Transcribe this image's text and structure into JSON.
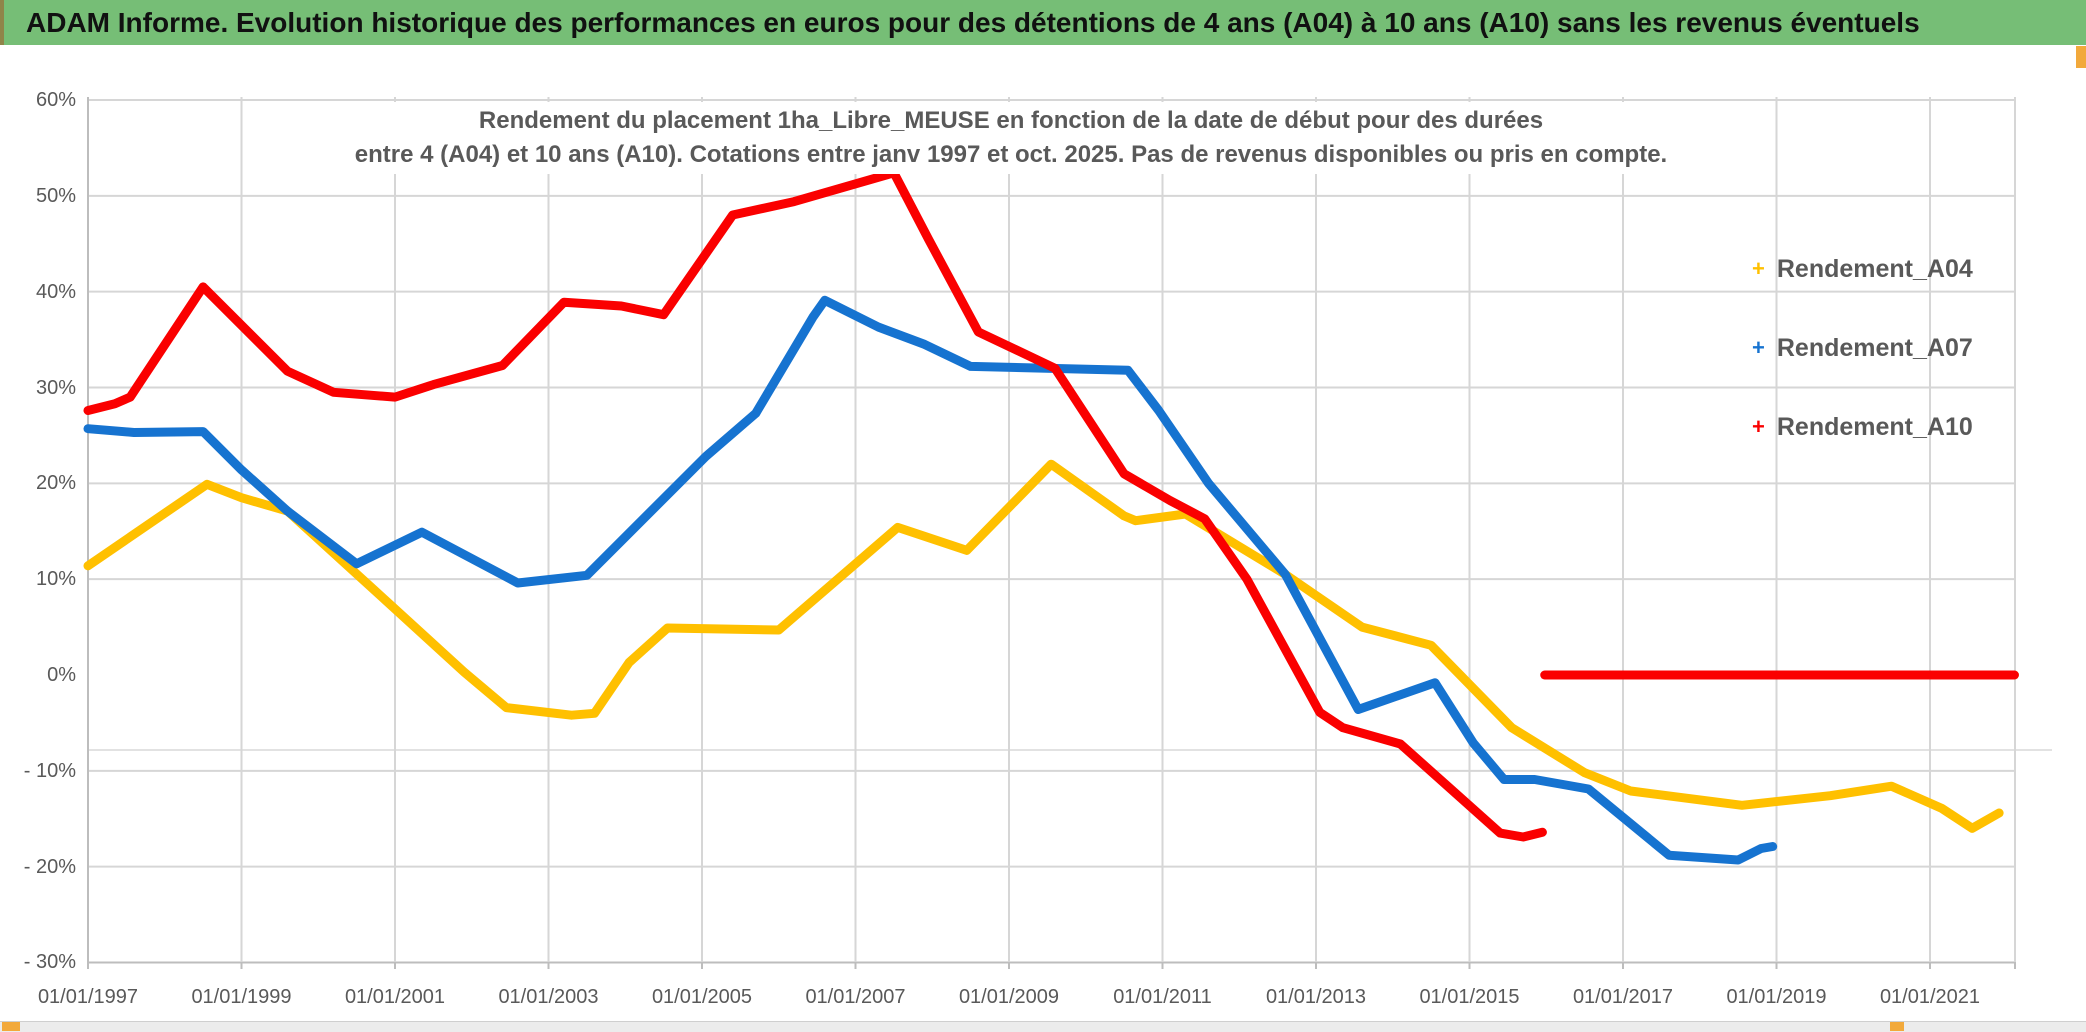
{
  "header": {
    "title": "ADAM Informe. Evolution historique des performances en euros pour des détentions de 4 ans (A04) à 10 ans (A10) sans les revenus éventuels"
  },
  "theme": {
    "header_bg": "#76BE76",
    "text_gray": "#595959",
    "gridline": "#D6D6D6",
    "axis_line": "#BDBDBD",
    "row_line": "#E2E2E2",
    "handle_orange": "#F2A93B",
    "series_a04": "#FFC000",
    "series_a07": "#1673D0",
    "series_a10": "#FA0000"
  },
  "chart_data": {
    "type": "line",
    "title_line1": "Rendement du placement 1ha_Libre_MEUSE en fonction de la date de début pour des durées",
    "title_line2": "entre 4 (A04) et 10 ans (A10). Cotations entre janv 1997 et oct. 2025. Pas de revenus disponibles ou pris en compte.",
    "x_range": [
      1997,
      2022.15
    ],
    "y_range": [
      -30,
      60
    ],
    "grid": "on",
    "legend_position": "right",
    "y_ticks": [
      {
        "label": "60%",
        "value": 60
      },
      {
        "label": "50%",
        "value": 50
      },
      {
        "label": "40%",
        "value": 40
      },
      {
        "label": "30%",
        "value": 30
      },
      {
        "label": "20%",
        "value": 20
      },
      {
        "label": "10%",
        "value": 10
      },
      {
        "label": "0%",
        "value": 0
      },
      {
        "label": "- 10%",
        "value": -10
      },
      {
        "label": "- 20%",
        "value": -20
      },
      {
        "label": "- 30%",
        "value": -30
      }
    ],
    "x_ticks": [
      {
        "label": "01/01/1997",
        "year": 1997
      },
      {
        "label": "01/01/1999",
        "year": 1999
      },
      {
        "label": "01/01/2001",
        "year": 2001
      },
      {
        "label": "01/01/2003",
        "year": 2003
      },
      {
        "label": "01/01/2005",
        "year": 2005
      },
      {
        "label": "01/01/2007",
        "year": 2007
      },
      {
        "label": "01/01/2009",
        "year": 2009
      },
      {
        "label": "01/01/2011",
        "year": 2011
      },
      {
        "label": "01/01/2013",
        "year": 2013
      },
      {
        "label": "01/01/2015",
        "year": 2015
      },
      {
        "label": "01/01/2017",
        "year": 2017
      },
      {
        "label": "01/01/2019",
        "year": 2019
      },
      {
        "label": "01/01/2021",
        "year": 2021
      }
    ],
    "legend": [
      {
        "label": "Rendement_A04",
        "marker": "+",
        "color": "#FFC000"
      },
      {
        "label": "Rendement_A07",
        "marker": "+",
        "color": "#1673D0"
      },
      {
        "label": "Rendement_A10",
        "marker": "+",
        "color": "#FA0000"
      }
    ],
    "series": [
      {
        "name": "Rendement_A04",
        "color": "#FFC000",
        "points": [
          [
            1997.0,
            11.4
          ],
          [
            1998.55,
            19.9
          ],
          [
            1999.0,
            18.5
          ],
          [
            1999.6,
            17.1
          ],
          [
            2001.0,
            6.9
          ],
          [
            2001.9,
            0.3
          ],
          [
            2002.45,
            -3.4
          ],
          [
            2003.3,
            -4.2
          ],
          [
            2003.6,
            -4.0
          ],
          [
            2004.05,
            1.3
          ],
          [
            2004.55,
            4.9
          ],
          [
            2006.0,
            4.7
          ],
          [
            2007.55,
            15.4
          ],
          [
            2008.45,
            13.0
          ],
          [
            2009.55,
            22.0
          ],
          [
            2010.5,
            16.6
          ],
          [
            2010.65,
            16.1
          ],
          [
            2011.3,
            16.8
          ],
          [
            2012.6,
            10.5
          ],
          [
            2013.6,
            5.0
          ],
          [
            2014.5,
            3.1
          ],
          [
            2015.55,
            -5.5
          ],
          [
            2016.5,
            -10.2
          ],
          [
            2017.1,
            -12.1
          ],
          [
            2018.55,
            -13.6
          ],
          [
            2019.7,
            -12.6
          ],
          [
            2020.5,
            -11.6
          ],
          [
            2021.15,
            -13.9
          ],
          [
            2021.55,
            -16.0
          ],
          [
            2021.9,
            -14.4
          ]
        ],
        "zero_segment": {
          "from": 2021.95,
          "to": 2022.1,
          "value": 0
        }
      },
      {
        "name": "Rendement_A07",
        "color": "#1673D0",
        "points": [
          [
            1997.0,
            25.7
          ],
          [
            1997.6,
            25.3
          ],
          [
            1998.5,
            25.4
          ],
          [
            1999.0,
            21.4
          ],
          [
            1999.6,
            17.1
          ],
          [
            2000.5,
            11.6
          ],
          [
            2001.35,
            14.9
          ],
          [
            2002.6,
            9.6
          ],
          [
            2003.5,
            10.4
          ],
          [
            2005.05,
            22.8
          ],
          [
            2005.7,
            27.3
          ],
          [
            2006.45,
            37.4
          ],
          [
            2006.6,
            39.1
          ],
          [
            2007.3,
            36.3
          ],
          [
            2007.9,
            34.5
          ],
          [
            2008.5,
            32.2
          ],
          [
            2010.55,
            31.8
          ],
          [
            2010.95,
            27.6
          ],
          [
            2011.6,
            20.0
          ],
          [
            2012.6,
            10.5
          ],
          [
            2013.55,
            -3.6
          ],
          [
            2014.55,
            -0.8
          ],
          [
            2015.05,
            -7.1
          ],
          [
            2015.45,
            -10.9
          ],
          [
            2015.85,
            -10.9
          ],
          [
            2016.55,
            -11.9
          ],
          [
            2017.6,
            -18.8
          ],
          [
            2018.5,
            -19.3
          ],
          [
            2018.8,
            -18.1
          ],
          [
            2018.95,
            -17.9
          ]
        ]
      },
      {
        "name": "Rendement_A10",
        "color": "#FA0000",
        "points": [
          [
            1997.0,
            27.6
          ],
          [
            1997.35,
            28.3
          ],
          [
            1997.55,
            29.0
          ],
          [
            1998.5,
            40.5
          ],
          [
            1999.6,
            31.7
          ],
          [
            2000.2,
            29.5
          ],
          [
            2001.0,
            29.0
          ],
          [
            2001.5,
            30.3
          ],
          [
            2002.4,
            32.3
          ],
          [
            2003.2,
            38.9
          ],
          [
            2003.95,
            38.5
          ],
          [
            2004.5,
            37.6
          ],
          [
            2005.4,
            48.0
          ],
          [
            2006.2,
            49.4
          ],
          [
            2007.5,
            52.4
          ],
          [
            2007.95,
            45.5
          ],
          [
            2008.6,
            35.8
          ],
          [
            2009.6,
            32.0
          ],
          [
            2010.5,
            21.0
          ],
          [
            2011.1,
            18.2
          ],
          [
            2011.55,
            16.3
          ],
          [
            2012.1,
            10.0
          ],
          [
            2013.05,
            -3.9
          ],
          [
            2013.35,
            -5.5
          ],
          [
            2014.1,
            -7.2
          ],
          [
            2015.4,
            -16.5
          ],
          [
            2015.7,
            -16.9
          ],
          [
            2015.95,
            -16.4
          ]
        ],
        "zero_segment": {
          "from": 2015.98,
          "to": 2022.1,
          "value": 0
        }
      }
    ]
  }
}
